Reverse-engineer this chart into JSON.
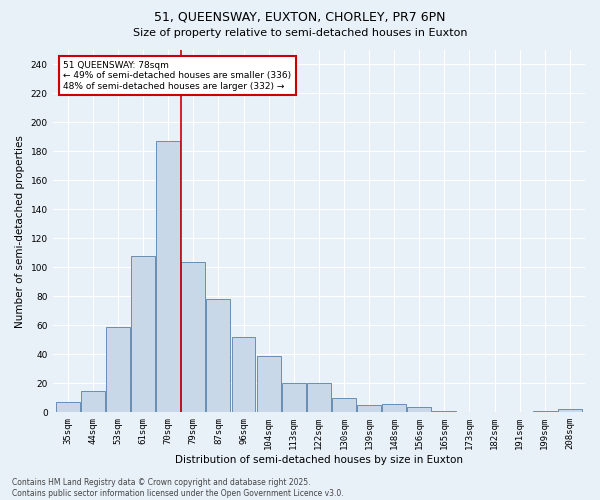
{
  "title": "51, QUEENSWAY, EUXTON, CHORLEY, PR7 6PN",
  "subtitle": "Size of property relative to semi-detached houses in Euxton",
  "xlabel": "Distribution of semi-detached houses by size in Euxton",
  "ylabel": "Number of semi-detached properties",
  "bins": [
    "35sqm",
    "44sqm",
    "53sqm",
    "61sqm",
    "70sqm",
    "79sqm",
    "87sqm",
    "96sqm",
    "104sqm",
    "113sqm",
    "122sqm",
    "130sqm",
    "139sqm",
    "148sqm",
    "156sqm",
    "165sqm",
    "173sqm",
    "182sqm",
    "191sqm",
    "199sqm",
    "208sqm"
  ],
  "values": [
    7,
    15,
    59,
    108,
    187,
    104,
    78,
    52,
    39,
    20,
    20,
    10,
    5,
    6,
    4,
    1,
    0,
    0,
    0,
    1,
    2
  ],
  "bar_color": "#c8d8e8",
  "bar_edge_color": "#5580aa",
  "vline_position": 4.5,
  "vline_color": "#cc0000",
  "annotation_text": "51 QUEENSWAY: 78sqm\n← 49% of semi-detached houses are smaller (336)\n48% of semi-detached houses are larger (332) →",
  "annotation_box_color": "#cc0000",
  "ylim": [
    0,
    250
  ],
  "yticks": [
    0,
    20,
    40,
    60,
    80,
    100,
    120,
    140,
    160,
    180,
    200,
    220,
    240
  ],
  "footer": "Contains HM Land Registry data © Crown copyright and database right 2025.\nContains public sector information licensed under the Open Government Licence v3.0.",
  "bg_color": "#e8f0f8",
  "plot_bg_color": "#e8f0f8",
  "grid_color": "#ffffff",
  "title_fontsize": 9,
  "subtitle_fontsize": 8,
  "axis_label_fontsize": 7.5,
  "tick_fontsize": 6.5,
  "annotation_fontsize": 6.5,
  "footer_fontsize": 5.5
}
